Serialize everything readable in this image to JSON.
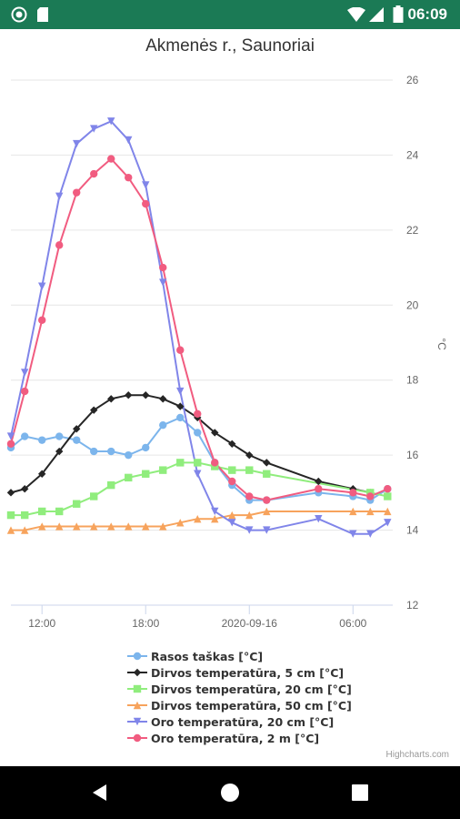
{
  "status_bar": {
    "time": "06:09",
    "icons": [
      "sync-icon",
      "sim-card-icon",
      "wifi-icon",
      "signal-icon",
      "battery-icon"
    ],
    "background": "#1b7a55"
  },
  "chart_data": {
    "type": "line",
    "title": "Akmenės r., Saunoriai",
    "xlabel": "",
    "ylabel": "°C",
    "y_axis_position": "right",
    "ylim": [
      12,
      26
    ],
    "y_ticks": [
      12,
      14,
      16,
      18,
      20,
      22,
      24,
      26
    ],
    "x_ticks": [
      {
        "label": "12:00",
        "at": 12
      },
      {
        "label": "18:00",
        "at": 18
      },
      {
        "label": "2020-09-16",
        "at": 24
      },
      {
        "label": "06:00",
        "at": 30
      }
    ],
    "x_unit": "hours from 2020-09-15 00:00",
    "xlim": [
      10.2,
      32.3
    ],
    "grid": true,
    "legend_position": "bottom",
    "series": [
      {
        "name": "Rasos taškas [°C]",
        "color": "#7cb5ec",
        "marker": "circle",
        "x": [
          10.2,
          11,
          12,
          13,
          14,
          15,
          16,
          17,
          18,
          19,
          20,
          21,
          22,
          23,
          24,
          25,
          28,
          30,
          31,
          32
        ],
        "y": [
          16.2,
          16.5,
          16.4,
          16.5,
          16.4,
          16.1,
          16.1,
          16.0,
          16.2,
          16.8,
          17.0,
          16.6,
          15.8,
          15.2,
          14.8,
          14.8,
          15.0,
          14.9,
          14.8,
          15.1
        ]
      },
      {
        "name": "Dirvos temperatūra, 5 cm [°C]",
        "color": "#262626",
        "marker": "diamond",
        "x": [
          10.2,
          11,
          12,
          13,
          14,
          15,
          16,
          17,
          18,
          19,
          20,
          21,
          22,
          23,
          24,
          25,
          28,
          30,
          31
        ],
        "y": [
          15.0,
          15.1,
          15.5,
          16.1,
          16.7,
          17.2,
          17.5,
          17.6,
          17.6,
          17.5,
          17.3,
          17.0,
          16.6,
          16.3,
          16.0,
          15.8,
          15.3,
          15.1,
          15.0
        ]
      },
      {
        "name": "Dirvos temperatūra, 20 cm [°C]",
        "color": "#90ed7d",
        "marker": "square",
        "x": [
          10.2,
          11,
          12,
          13,
          14,
          15,
          16,
          17,
          18,
          19,
          20,
          21,
          22,
          23,
          24,
          25,
          31,
          32
        ],
        "y": [
          14.4,
          14.4,
          14.5,
          14.5,
          14.7,
          14.9,
          15.2,
          15.4,
          15.5,
          15.6,
          15.8,
          15.8,
          15.7,
          15.6,
          15.6,
          15.5,
          15.0,
          14.9
        ]
      },
      {
        "name": "Dirvos temperatūra, 50 cm [°C]",
        "color": "#f7a35c",
        "marker": "triangle",
        "x": [
          10.2,
          11,
          12,
          13,
          14,
          15,
          16,
          17,
          18,
          19,
          20,
          21,
          22,
          23,
          24,
          25,
          30,
          31,
          32
        ],
        "y": [
          14.0,
          14.0,
          14.1,
          14.1,
          14.1,
          14.1,
          14.1,
          14.1,
          14.1,
          14.1,
          14.2,
          14.3,
          14.3,
          14.4,
          14.4,
          14.5,
          14.5,
          14.5,
          14.5
        ]
      },
      {
        "name": "Oro temperatūra, 20 cm [°C]",
        "color": "#8085e9",
        "marker": "triangle-down",
        "x": [
          10.2,
          11,
          12,
          13,
          14,
          15,
          16,
          17,
          18,
          19,
          20,
          21,
          22,
          23,
          24,
          25,
          28,
          30,
          31,
          32
        ],
        "y": [
          16.5,
          18.2,
          20.5,
          22.9,
          24.3,
          24.7,
          24.9,
          24.4,
          23.2,
          20.6,
          17.7,
          15.5,
          14.5,
          14.2,
          14.0,
          14.0,
          14.3,
          13.9,
          13.9,
          14.2
        ]
      },
      {
        "name": "Oro temperatūra, 2 m [°C]",
        "color": "#f15c80",
        "marker": "circle",
        "x": [
          10.2,
          11,
          12,
          13,
          14,
          15,
          16,
          17,
          18,
          19,
          20,
          21,
          22,
          23,
          24,
          25,
          28,
          30,
          31,
          32
        ],
        "y": [
          16.3,
          17.7,
          19.6,
          21.6,
          23.0,
          23.5,
          23.9,
          23.4,
          22.7,
          21.0,
          18.8,
          17.1,
          15.8,
          15.3,
          14.9,
          14.8,
          15.1,
          15.0,
          14.9,
          15.1
        ]
      }
    ]
  },
  "credits": "Highcharts.com",
  "nav": {
    "icons": [
      "back-icon",
      "home-icon",
      "recents-icon"
    ],
    "background": "#000000"
  }
}
